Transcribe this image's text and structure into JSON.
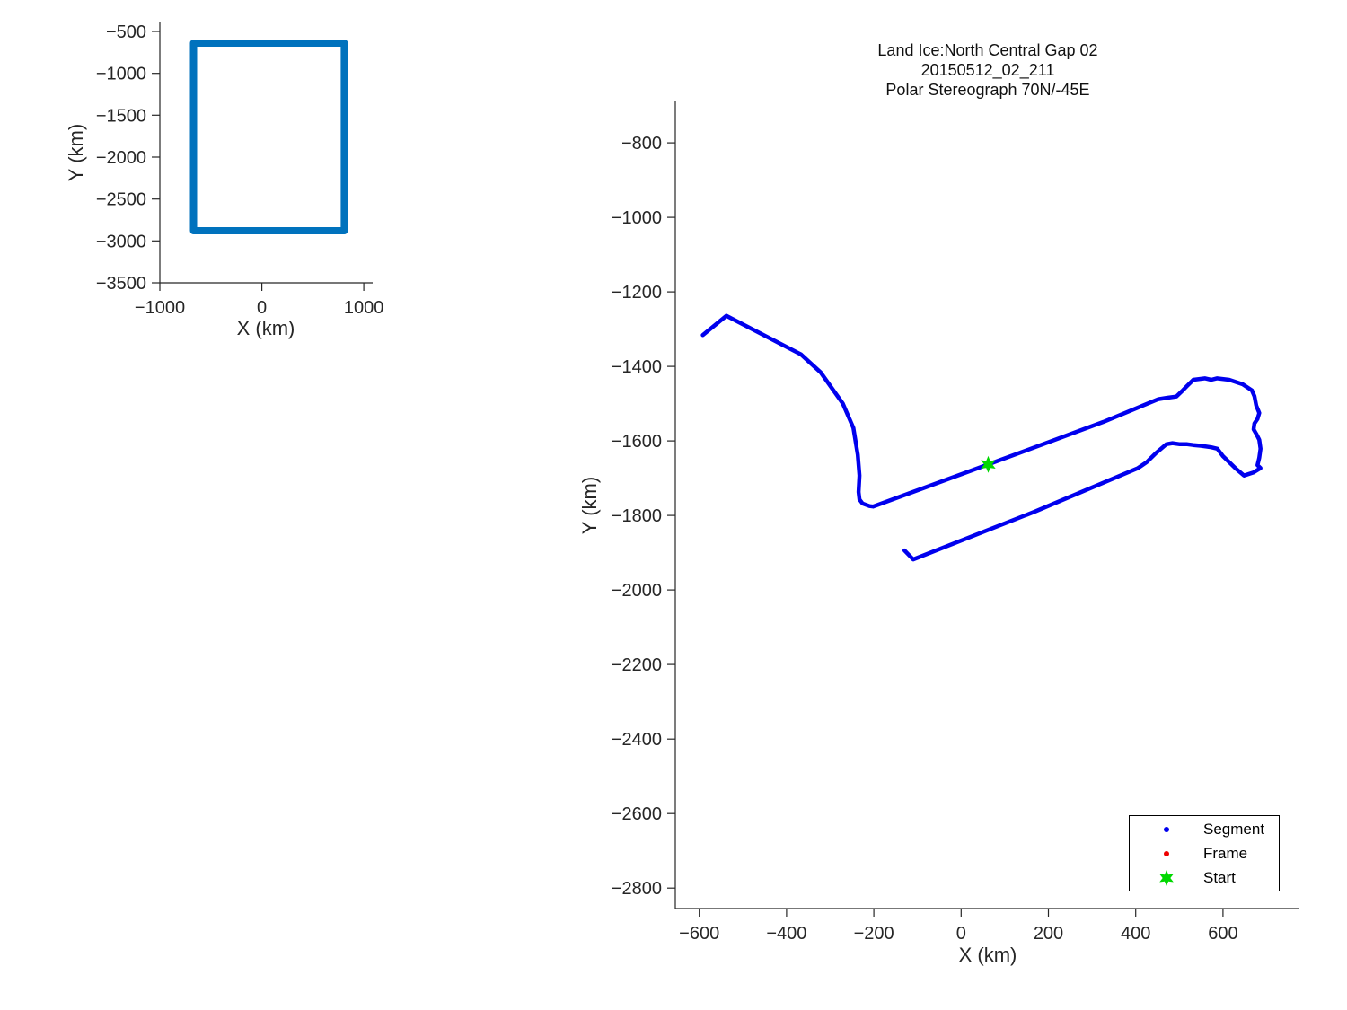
{
  "figure": {
    "background": "#FFFFFF",
    "axis_color": "#262626",
    "text_color": "#262626"
  },
  "chart_data": [
    {
      "id": "coverage-overview",
      "type": "line",
      "title": "",
      "xlabel": "X (km)",
      "ylabel": "Y (km)",
      "xlim": [
        -1000,
        1087
      ],
      "ylim": [
        -3500,
        -393
      ],
      "xticks": [
        -1000,
        0,
        1000
      ],
      "yticks": [
        -500,
        -1000,
        -1500,
        -2000,
        -2500,
        -3000,
        -3500
      ],
      "grid": false,
      "legend_position": "none",
      "series": [
        {
          "name": "coverage-box",
          "color": "#0072BD",
          "linewidth": 8,
          "points": [
            [
              -670,
              -639
            ],
            [
              809,
              -639
            ],
            [
              809,
              -2879
            ],
            [
              -670,
              -2879
            ],
            [
              -670,
              -639
            ]
          ]
        }
      ]
    },
    {
      "id": "flight-path",
      "type": "line",
      "title_lines": [
        "Land Ice:North Central Gap 02",
        "20150512_02_211",
        "Polar Stereograph 70N/-45E"
      ],
      "xlabel": "X (km)",
      "ylabel": "Y (km)",
      "xlim": [
        -655,
        775
      ],
      "ylim": [
        -2855,
        -689
      ],
      "xticks": [
        -600,
        -400,
        -200,
        0,
        200,
        400,
        600
      ],
      "yticks": [
        -800,
        -1000,
        -1200,
        -1400,
        -1600,
        -1800,
        -2000,
        -2200,
        -2400,
        -2600,
        -2800
      ],
      "grid": false,
      "legend_position": "lower-right",
      "series": [
        {
          "name": "segment-path",
          "color": "#0000EE",
          "linewidth": 4.5,
          "points": [
            [
              -592,
              -1316
            ],
            [
              -538,
              -1264
            ],
            [
              -367,
              -1368
            ],
            [
              -322,
              -1416
            ],
            [
              -271,
              -1500
            ],
            [
              -247,
              -1565
            ],
            [
              -237,
              -1637
            ],
            [
              -233,
              -1693
            ],
            [
              -235,
              -1737
            ],
            [
              -233,
              -1757
            ],
            [
              -226,
              -1768
            ],
            [
              -210,
              -1775
            ],
            [
              -202,
              -1776
            ],
            [
              62,
              -1663
            ],
            [
              326,
              -1549
            ],
            [
              452,
              -1488
            ],
            [
              473,
              -1484
            ],
            [
              493,
              -1481
            ],
            [
              508,
              -1464
            ],
            [
              518,
              -1452
            ],
            [
              532,
              -1436
            ],
            [
              559,
              -1432
            ],
            [
              573,
              -1436
            ],
            [
              586,
              -1432
            ],
            [
              614,
              -1436
            ],
            [
              645,
              -1448
            ],
            [
              666,
              -1464
            ],
            [
              672,
              -1480
            ],
            [
              676,
              -1505
            ],
            [
              683,
              -1525
            ],
            [
              679,
              -1541
            ],
            [
              672,
              -1553
            ],
            [
              670,
              -1569
            ],
            [
              676,
              -1581
            ],
            [
              683,
              -1597
            ],
            [
              686,
              -1621
            ],
            [
              683,
              -1645
            ],
            [
              679,
              -1665
            ],
            [
              686,
              -1673
            ],
            [
              669,
              -1685
            ],
            [
              648,
              -1693
            ],
            [
              628,
              -1673
            ],
            [
              614,
              -1657
            ],
            [
              600,
              -1641
            ],
            [
              587,
              -1621
            ],
            [
              573,
              -1617
            ],
            [
              549,
              -1613
            ],
            [
              532,
              -1611
            ],
            [
              518,
              -1609
            ],
            [
              501,
              -1609
            ],
            [
              484,
              -1606
            ],
            [
              470,
              -1609
            ],
            [
              446,
              -1633
            ],
            [
              425,
              -1657
            ],
            [
              405,
              -1673
            ],
            [
              168,
              -1790
            ],
            [
              -110,
              -1918
            ],
            [
              -130,
              -1894
            ]
          ]
        }
      ],
      "start_marker": {
        "x": 62,
        "y": -1663,
        "color": "#00D800",
        "shape": "hexagram"
      },
      "legend": {
        "entries": [
          {
            "label": "Segment",
            "marker": "dot",
            "color": "#0000EE"
          },
          {
            "label": "Frame",
            "marker": "dot",
            "color": "#EE0000"
          },
          {
            "label": "Start",
            "marker": "hexagram",
            "color": "#00D800"
          }
        ]
      }
    }
  ]
}
